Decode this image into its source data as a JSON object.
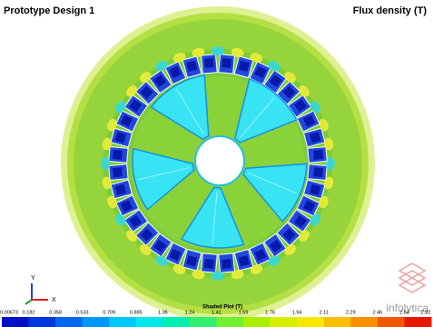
{
  "header": {
    "title": "Prototype Design 1",
    "quantity": "Flux density (T)"
  },
  "triad": {
    "y": "Y",
    "x": "X"
  },
  "colorbar": {
    "title": "Shaded Plot (T)",
    "ticks": [
      "0.00673",
      "0.182",
      "0.358",
      "0.533",
      "0.709",
      "0.885",
      "1.06",
      "1.24",
      "1.41",
      "1.59",
      "1.76",
      "1.94",
      "2.11",
      "2.29",
      "2.46",
      "2.64",
      "2.82"
    ],
    "colors": [
      "#0010c8",
      "#0038e0",
      "#0068f0",
      "#0098f8",
      "#00c8f8",
      "#00e8e8",
      "#00f0b0",
      "#30f070",
      "#70f030",
      "#a8f000",
      "#d8f000",
      "#f8e800",
      "#f8c000",
      "#f89000",
      "#f05800",
      "#e81800"
    ]
  },
  "logo": "infolytica"
}
